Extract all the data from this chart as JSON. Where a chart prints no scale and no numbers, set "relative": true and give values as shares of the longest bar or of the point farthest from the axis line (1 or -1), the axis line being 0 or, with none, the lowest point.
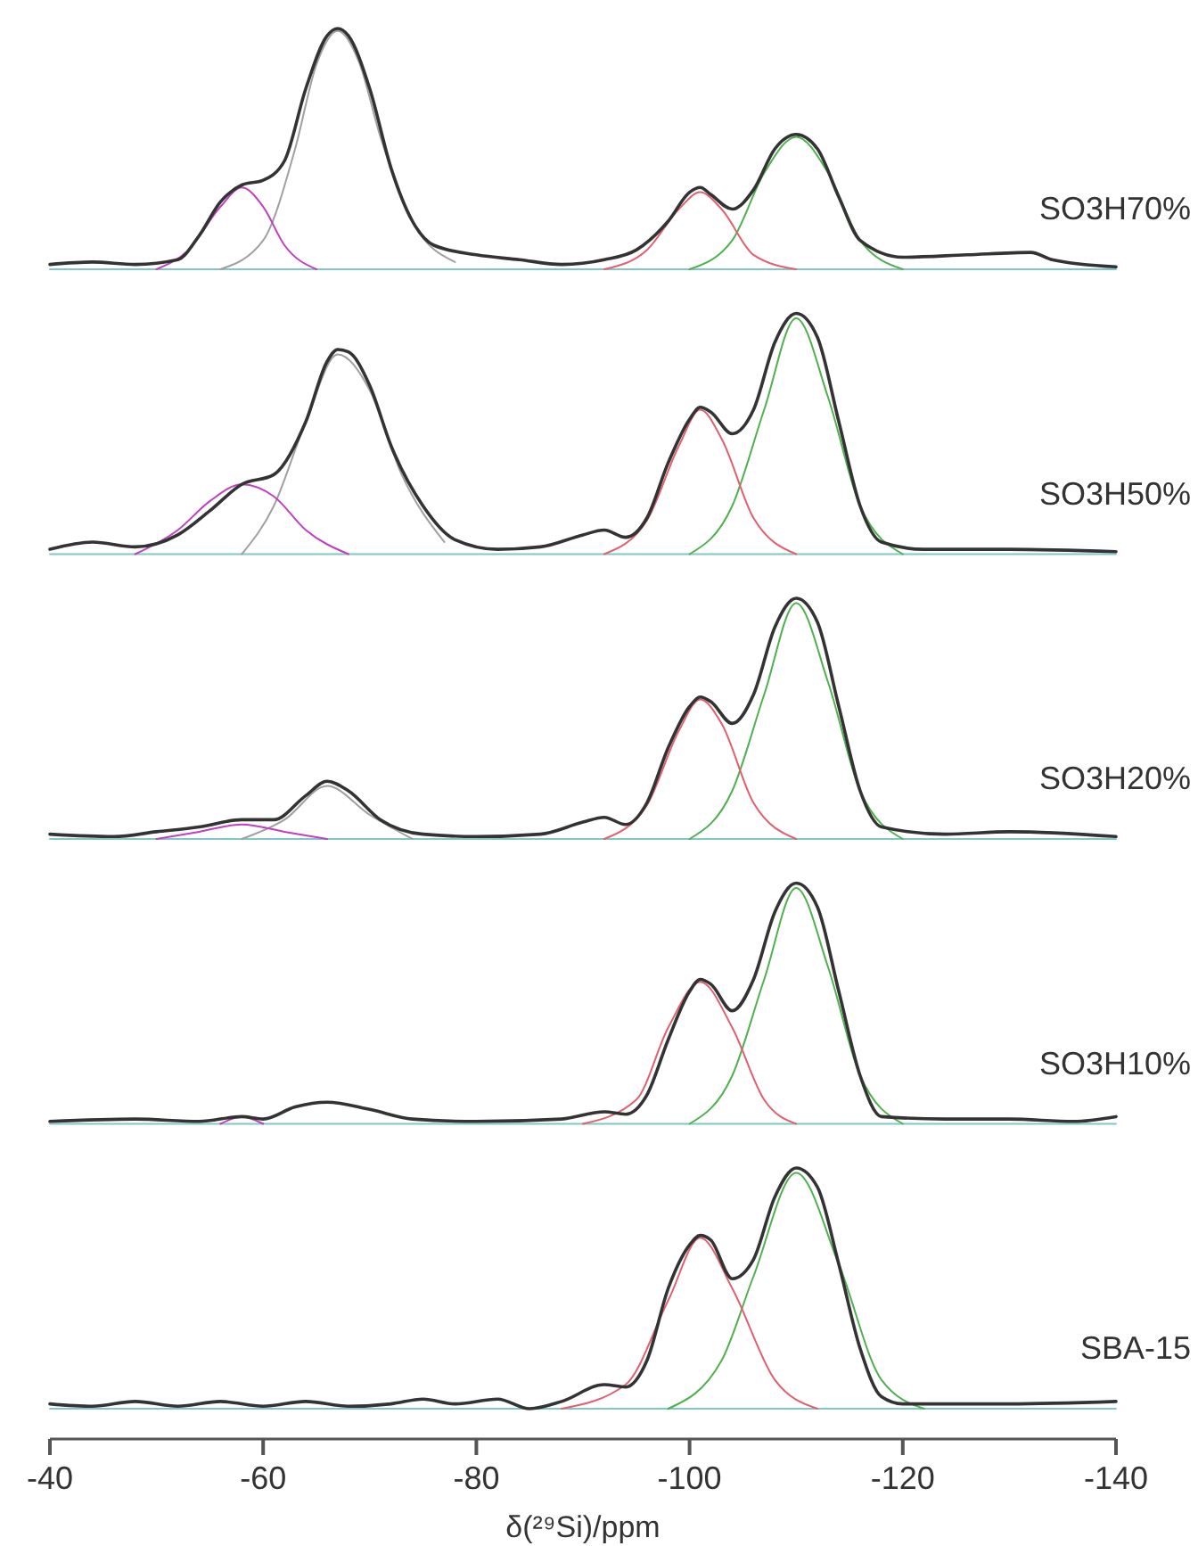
{
  "chart_data": [
    {
      "type": "line",
      "relative": true,
      "xlim": [
        -40,
        -140
      ],
      "tick_labels": false,
      "series": [
        {
          "name": "SO3H70%",
          "color": "#333333",
          "x": [
            -40,
            -44,
            -48,
            -52,
            -54,
            -56,
            -58,
            -60,
            -62,
            -64,
            -66,
            -67,
            -68,
            -70,
            -72,
            -74,
            -76,
            -80,
            -84,
            -88,
            -92,
            -95,
            -98,
            -100,
            -101,
            -102,
            -104,
            -106,
            -108,
            -110,
            -112,
            -114,
            -116,
            -120,
            -126,
            -132,
            -134,
            -140
          ],
          "values": [
            0.02,
            0.03,
            0.02,
            0.04,
            0.14,
            0.28,
            0.35,
            0.37,
            0.45,
            0.75,
            0.97,
            1.0,
            0.97,
            0.75,
            0.42,
            0.2,
            0.1,
            0.06,
            0.04,
            0.02,
            0.04,
            0.08,
            0.2,
            0.32,
            0.34,
            0.31,
            0.25,
            0.33,
            0.5,
            0.56,
            0.5,
            0.3,
            0.12,
            0.05,
            0.06,
            0.07,
            0.04,
            0.01
          ]
        },
        {
          "color": "#c040c0",
          "x": [
            -50,
            -53,
            -56,
            -58,
            -60,
            -62,
            -65
          ],
          "values": [
            0,
            0.08,
            0.26,
            0.34,
            0.26,
            0.1,
            0
          ]
        },
        {
          "color": "#a0a0a0",
          "x": [
            -56,
            -60,
            -63,
            -65,
            -67,
            -69,
            -71,
            -74,
            -78
          ],
          "values": [
            0,
            0.12,
            0.5,
            0.85,
            0.99,
            0.86,
            0.55,
            0.2,
            0.03
          ]
        },
        {
          "color": "#e06070",
          "x": [
            -92,
            -96,
            -99,
            -101,
            -103,
            -106,
            -110
          ],
          "values": [
            0,
            0.08,
            0.25,
            0.32,
            0.25,
            0.06,
            0
          ]
        },
        {
          "color": "#50b050",
          "x": [
            -100,
            -104,
            -107,
            -110,
            -113,
            -116,
            -120
          ],
          "values": [
            0,
            0.12,
            0.4,
            0.55,
            0.4,
            0.12,
            0
          ]
        },
        {
          "color": "#80c8c8",
          "x": [
            -40,
            -140
          ],
          "values": [
            0,
            0
          ]
        }
      ]
    },
    {
      "type": "line",
      "relative": true,
      "xlim": [
        -40,
        -140
      ],
      "tick_labels": false,
      "series": [
        {
          "name": "SO3H50%",
          "color": "#333333",
          "x": [
            -40,
            -44,
            -48,
            -52,
            -55,
            -58,
            -61,
            -64,
            -66,
            -67,
            -68,
            -70,
            -72,
            -75,
            -78,
            -82,
            -86,
            -90,
            -92,
            -94,
            -96,
            -98,
            -100,
            -101,
            -102,
            -104,
            -106,
            -108,
            -110,
            -112,
            -114,
            -116,
            -118,
            -122,
            -130,
            -140
          ],
          "values": [
            0.02,
            0.05,
            0.03,
            0.08,
            0.18,
            0.29,
            0.33,
            0.55,
            0.8,
            0.85,
            0.84,
            0.7,
            0.45,
            0.2,
            0.06,
            0.02,
            0.03,
            0.08,
            0.1,
            0.07,
            0.15,
            0.38,
            0.56,
            0.61,
            0.59,
            0.5,
            0.6,
            0.88,
            1.0,
            0.9,
            0.55,
            0.2,
            0.05,
            0.02,
            0.02,
            0.01
          ]
        },
        {
          "color": "#c040c0",
          "x": [
            -48,
            -52,
            -55,
            -58,
            -61,
            -64,
            -68
          ],
          "values": [
            0,
            0.1,
            0.22,
            0.29,
            0.24,
            0.1,
            0
          ]
        },
        {
          "color": "#a0a0a0",
          "x": [
            -58,
            -61,
            -64,
            -67,
            -70,
            -73,
            -77
          ],
          "values": [
            0,
            0.2,
            0.55,
            0.83,
            0.68,
            0.33,
            0.05
          ]
        },
        {
          "color": "#e06070",
          "x": [
            -92,
            -96,
            -99,
            -101,
            -103,
            -106,
            -110
          ],
          "values": [
            0,
            0.14,
            0.45,
            0.6,
            0.48,
            0.15,
            0
          ]
        },
        {
          "color": "#50b050",
          "x": [
            -100,
            -104,
            -107,
            -110,
            -113,
            -116,
            -120
          ],
          "values": [
            0,
            0.2,
            0.6,
            0.98,
            0.65,
            0.2,
            0
          ]
        },
        {
          "color": "#80c8c8",
          "x": [
            -40,
            -140
          ],
          "values": [
            0,
            0
          ]
        }
      ]
    },
    {
      "type": "line",
      "relative": true,
      "xlim": [
        -40,
        -140
      ],
      "tick_labels": false,
      "series": [
        {
          "name": "SO3H20%",
          "color": "#333333",
          "x": [
            -40,
            -46,
            -50,
            -54,
            -58,
            -61,
            -64,
            -66,
            -68,
            -71,
            -75,
            -80,
            -86,
            -90,
            -92,
            -94,
            -96,
            -98,
            -100,
            -101,
            -102,
            -104,
            -106,
            -108,
            -110,
            -112,
            -114,
            -116,
            -118,
            -124,
            -130,
            -140
          ],
          "values": [
            0.02,
            0.01,
            0.03,
            0.05,
            0.08,
            0.08,
            0.18,
            0.24,
            0.2,
            0.08,
            0.02,
            0.01,
            0.02,
            0.07,
            0.09,
            0.06,
            0.15,
            0.38,
            0.55,
            0.59,
            0.57,
            0.48,
            0.6,
            0.88,
            1.0,
            0.9,
            0.55,
            0.2,
            0.05,
            0.02,
            0.03,
            0.01
          ]
        },
        {
          "color": "#c040c0",
          "x": [
            -50,
            -54,
            -58,
            -62,
            -66
          ],
          "values": [
            0,
            0.03,
            0.06,
            0.03,
            0
          ]
        },
        {
          "color": "#a0a0a0",
          "x": [
            -58,
            -62,
            -66,
            -70,
            -74
          ],
          "values": [
            0,
            0.08,
            0.22,
            0.1,
            0
          ]
        },
        {
          "color": "#e06070",
          "x": [
            -92,
            -96,
            -99,
            -101,
            -103,
            -106,
            -110
          ],
          "values": [
            0,
            0.14,
            0.45,
            0.58,
            0.48,
            0.15,
            0
          ]
        },
        {
          "color": "#50b050",
          "x": [
            -100,
            -104,
            -107,
            -110,
            -113,
            -116,
            -120
          ],
          "values": [
            0,
            0.2,
            0.6,
            0.98,
            0.65,
            0.2,
            0
          ]
        },
        {
          "color": "#80c8c8",
          "x": [
            -40,
            -140
          ],
          "values": [
            0,
            0
          ]
        }
      ]
    },
    {
      "type": "line",
      "relative": true,
      "xlim": [
        -40,
        -140
      ],
      "tick_labels": false,
      "series": [
        {
          "name": "SO3H10%",
          "color": "#333333",
          "x": [
            -40,
            -48,
            -54,
            -58,
            -60,
            -63,
            -66,
            -70,
            -74,
            -80,
            -88,
            -92,
            -94,
            -96,
            -98,
            -100,
            -101,
            -102,
            -104,
            -106,
            -108,
            -110,
            -112,
            -114,
            -116,
            -118,
            -124,
            -130,
            -136,
            -140
          ],
          "values": [
            0.01,
            0.02,
            0.01,
            0.03,
            0.02,
            0.07,
            0.09,
            0.06,
            0.02,
            0.01,
            0.02,
            0.05,
            0.04,
            0.12,
            0.35,
            0.55,
            0.6,
            0.58,
            0.47,
            0.6,
            0.88,
            1.0,
            0.9,
            0.55,
            0.2,
            0.03,
            0.02,
            0.02,
            0.01,
            0.03
          ]
        },
        {
          "color": "#c040c0",
          "x": [
            -56,
            -58,
            -60
          ],
          "values": [
            0,
            0.03,
            0
          ]
        },
        {
          "color": "#e06070",
          "x": [
            -90,
            -95,
            -98,
            -101,
            -104,
            -107,
            -110
          ],
          "values": [
            0,
            0.1,
            0.4,
            0.59,
            0.4,
            0.1,
            0
          ]
        },
        {
          "color": "#50b050",
          "x": [
            -100,
            -104,
            -107,
            -110,
            -113,
            -116,
            -120
          ],
          "values": [
            0,
            0.2,
            0.6,
            0.98,
            0.65,
            0.2,
            0
          ]
        },
        {
          "color": "#80c8c8",
          "x": [
            -40,
            -140
          ],
          "values": [
            0,
            0
          ]
        }
      ]
    },
    {
      "type": "line",
      "relative": true,
      "xlim": [
        -40,
        -140
      ],
      "tick_labels": "x",
      "xlabel": "δ(²⁹Si)/ppm",
      "xticks": [
        -40,
        -60,
        -80,
        -100,
        -120,
        -140
      ],
      "series": [
        {
          "name": "SBA-15",
          "color": "#333333",
          "x": [
            -40,
            -44,
            -48,
            -52,
            -56,
            -60,
            -64,
            -68,
            -72,
            -75,
            -78,
            -82,
            -85,
            -88,
            -92,
            -94,
            -96,
            -98,
            -100,
            -101,
            -102,
            -104,
            -106,
            -108,
            -110,
            -112,
            -114,
            -116,
            -118,
            -120,
            -130,
            -140
          ],
          "values": [
            0.02,
            0.01,
            0.03,
            0.01,
            0.03,
            0.01,
            0.03,
            0.01,
            0.02,
            0.04,
            0.02,
            0.04,
            0,
            0.03,
            0.1,
            0.09,
            0.2,
            0.5,
            0.68,
            0.72,
            0.7,
            0.54,
            0.62,
            0.88,
            1.0,
            0.92,
            0.6,
            0.25,
            0.05,
            0.02,
            0.02,
            0.03
          ]
        },
        {
          "color": "#e06070",
          "x": [
            -88,
            -94,
            -98,
            -101,
            -104,
            -108,
            -112
          ],
          "values": [
            0,
            0.1,
            0.45,
            0.71,
            0.5,
            0.12,
            0
          ]
        },
        {
          "color": "#50b050",
          "x": [
            -98,
            -103,
            -106,
            -110,
            -114,
            -118,
            -122
          ],
          "values": [
            0,
            0.2,
            0.55,
            0.98,
            0.6,
            0.12,
            0
          ]
        },
        {
          "color": "#80c8c8",
          "x": [
            -40,
            -140
          ],
          "values": [
            0,
            0
          ]
        }
      ]
    }
  ]
}
